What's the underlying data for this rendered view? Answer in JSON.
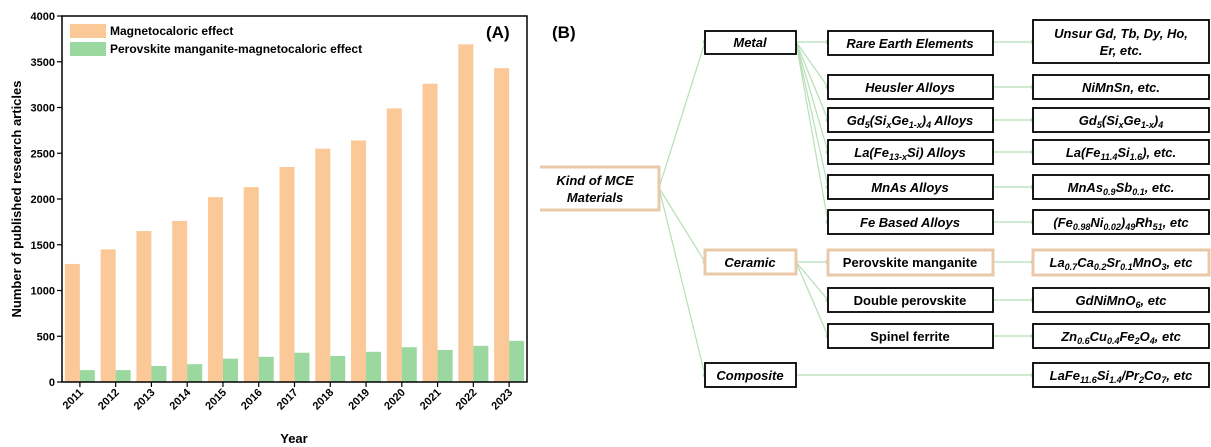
{
  "panel_a_label": "(A)",
  "panel_b_label": "(B)",
  "chart_data": {
    "type": "bar",
    "xlabel": "Year",
    "ylabel": "Number of published research articles",
    "ylim": [
      0,
      4000
    ],
    "yticks": [
      0,
      500,
      1000,
      1500,
      2000,
      2500,
      3000,
      3500,
      4000
    ],
    "categories": [
      "2011",
      "2012",
      "2013",
      "2014",
      "2015",
      "2016",
      "2017",
      "2018",
      "2019",
      "2020",
      "2021",
      "2022",
      "2023"
    ],
    "legend_position": "top-left",
    "grid": false,
    "series": [
      {
        "name": "Magnetocaloric effect",
        "color": "#fbc898",
        "values": [
          1290,
          1450,
          1650,
          1760,
          2020,
          2130,
          2350,
          2550,
          2640,
          2990,
          3260,
          3690,
          3430
        ]
      },
      {
        "name": "Perovskite manganite-magnetocaloric effect",
        "color": "#9ad8a0",
        "values": [
          130,
          130,
          175,
          195,
          255,
          275,
          320,
          285,
          330,
          380,
          350,
          395,
          450
        ]
      }
    ]
  },
  "diagram": {
    "root": "Kind of MCE Materials",
    "categories": {
      "metal": "Metal",
      "ceramic": "Ceramic",
      "composite": "Composite"
    },
    "metal_items": [
      "Rare Earth Elements",
      "Heusler Alloys",
      "Gd5(SixGe1-x)4 Alloys",
      "La(Fe13-xSi) Alloys",
      "MnAs Alloys",
      "Fe Based Alloys"
    ],
    "metal_examples": [
      "Unsur Gd, Tb, Dy, Ho, Er, etc.",
      "NiMnSn, etc.",
      "Gd5(SixGe1-x)4",
      "La(Fe11.4Si1.6), etc.",
      "MnAs0.9Sb0.1, etc.",
      "(Fe0.98Ni0.02)49Rh51, etc"
    ],
    "ceramic_items": [
      "Perovskite manganite",
      "Double perovskite",
      "Spinel ferrite"
    ],
    "ceramic_examples": [
      "La0.7Ca0.2Sr0.1MnO3, etc",
      "GdNiMnO6, etc",
      "Zn0.6Cu0.4Fe2O4, etc"
    ],
    "composite_example": "LaFe11.6Si1.4/Pr2Co7, etc"
  }
}
